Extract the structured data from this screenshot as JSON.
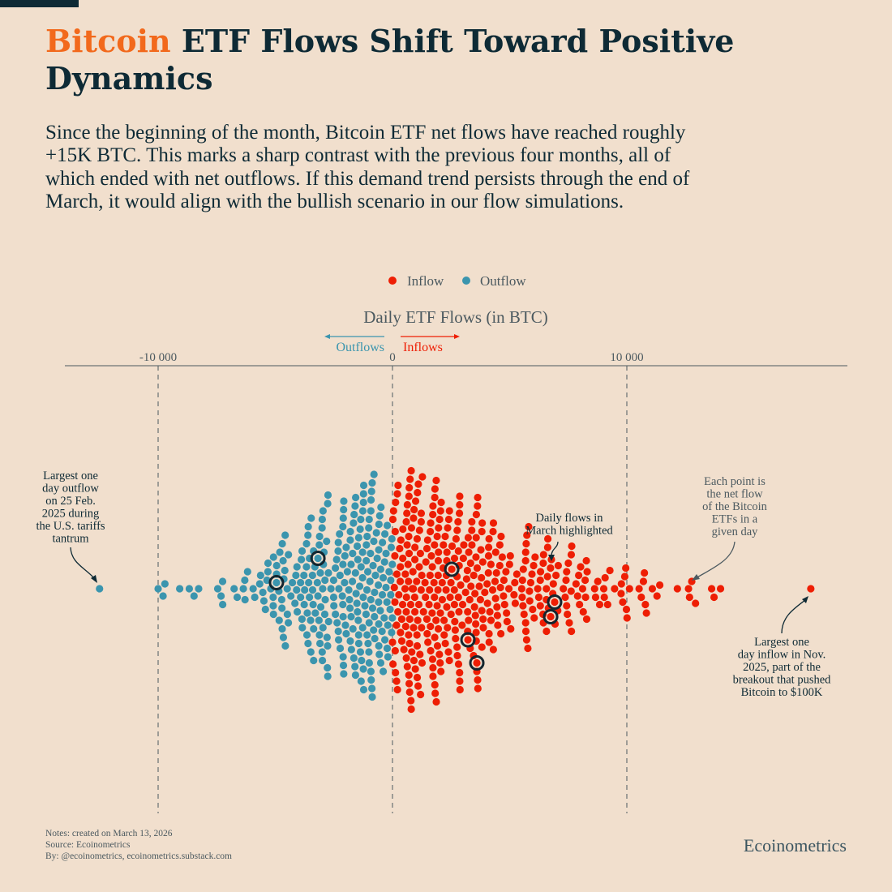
{
  "header": {
    "title_accent": "Bitcoin",
    "title_rest": " ETF Flows Shift Toward Positive Dynamics",
    "subtitle": "Since the beginning of the month, Bitcoin ETF net flows have reached roughly +15K BTC. This marks a sharp contrast with the previous four months, all of which ended with net outflows. If this demand trend persists through the end of March, it would align with the bullish scenario in our flow simulations."
  },
  "colors": {
    "inflow": "#ee1e04",
    "outflow": "#3b95ae",
    "highlight": "#14262f",
    "background": "#f1dfcd",
    "accent": "#f2691c"
  },
  "chart_data": {
    "type": "scatter",
    "subtype": "beeswarm",
    "title": "Daily ETF Flows (in BTC)",
    "legend": [
      {
        "label": "Inflow",
        "color": "#ee1e04"
      },
      {
        "label": "Outflow",
        "color": "#3b95ae"
      }
    ],
    "legend_placement": "top-center",
    "direction_labels": {
      "outflows": "Outflows",
      "inflows": "Inflows"
    },
    "xlim": [
      -14000,
      19000
    ],
    "xticks": [
      {
        "value": -10000,
        "label": "-10 000"
      },
      {
        "value": 0,
        "label": "0"
      },
      {
        "value": 10000,
        "label": "10 000"
      }
    ],
    "bin_width": 1000,
    "distribution_bins": [
      {
        "start": -10000,
        "count": 4
      },
      {
        "start": -9000,
        "count": 3
      },
      {
        "start": -8000,
        "count": 4
      },
      {
        "start": -7000,
        "count": 6
      },
      {
        "start": -6000,
        "count": 15
      },
      {
        "start": -5000,
        "count": 26
      },
      {
        "start": -4000,
        "count": 40
      },
      {
        "start": -3000,
        "count": 50
      },
      {
        "start": -2000,
        "count": 60
      },
      {
        "start": -1000,
        "count": 62
      },
      {
        "start": 0,
        "count": 76
      },
      {
        "start": 1000,
        "count": 66
      },
      {
        "start": 2000,
        "count": 56
      },
      {
        "start": 3000,
        "count": 46
      },
      {
        "start": 4000,
        "count": 36
      },
      {
        "start": 5000,
        "count": 26
      },
      {
        "start": 6000,
        "count": 25
      },
      {
        "start": 7000,
        "count": 18
      },
      {
        "start": 8000,
        "count": 12
      },
      {
        "start": 9000,
        "count": 12
      },
      {
        "start": 10000,
        "count": 8
      },
      {
        "start": 11000,
        "count": 3
      },
      {
        "start": 12000,
        "count": 5
      },
      {
        "start": 13000,
        "count": 3
      }
    ],
    "extremes": [
      -12500,
      17850
    ],
    "march_highlighted": [
      -4950,
      -3180,
      2530,
      3220,
      3600,
      6750,
      6920
    ],
    "annotations": {
      "largest_outflow": "Largest one|day outflow|on 25 Feb.|2025 during|the U.S. tariffs|tantrum",
      "march": "Daily flows in|March highlighted",
      "each_point": "Each point is|the net flow|of the Bitcoin|ETFs in a|given day",
      "largest_inflow": "Largest one|day inflow in Nov.|2025, part of the|breakout that pushed|Bitcoin to $100K"
    }
  },
  "footer": {
    "notes": "Notes: created on March 13, 2026",
    "source": "Source: Ecoinometrics",
    "by": "By: @ecoinometrics, ecoinometrics.substack.com",
    "brand": "Ecoinometrics"
  }
}
